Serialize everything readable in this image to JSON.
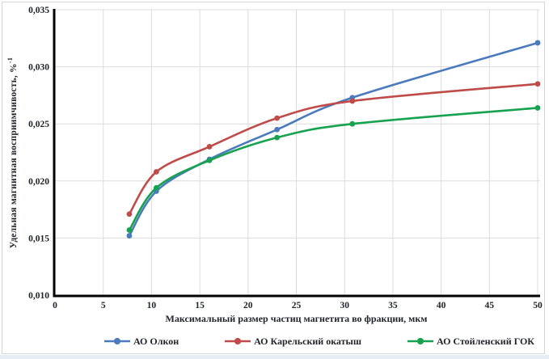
{
  "frame": {
    "border_color": "#d6d6d6",
    "bottom_strip_color": "#e7edf4",
    "background": "#ffffff"
  },
  "chart_data": {
    "type": "line",
    "line_style": "smooth",
    "marker": "circle",
    "x": [
      7.7,
      10.5,
      16,
      23,
      30.8,
      50
    ],
    "series": [
      {
        "name": "АО Олкон",
        "color": "#4b7bbd",
        "values": [
          0.0152,
          0.0191,
          0.0219,
          0.0245,
          0.0273,
          0.0321
        ]
      },
      {
        "name": "АО Карельский окатыш",
        "color": "#bf4c49",
        "values": [
          0.0171,
          0.0208,
          0.023,
          0.0255,
          0.027,
          0.0285
        ]
      },
      {
        "name": "АО Стойленский ГОК",
        "color": "#17a24f",
        "values": [
          0.0157,
          0.0194,
          0.0218,
          0.0238,
          0.025,
          0.0264
        ]
      }
    ],
    "xlabel": "Максимальный размер частиц магнетита во фракции, мкм",
    "ylabel": "Удельная магнитная восприимчивость, %",
    "ylabel_superscript": "-1",
    "xlim": [
      0,
      50
    ],
    "ylim": [
      0.01,
      0.035
    ],
    "x_ticks": {
      "values": [
        0,
        5,
        10,
        15,
        20,
        25,
        30,
        35,
        40,
        45,
        50
      ],
      "labels": [
        "0",
        "5",
        "10",
        "15",
        "20",
        "25",
        "30",
        "35",
        "40",
        "45",
        "50"
      ]
    },
    "y_ticks": {
      "values": [
        0.01,
        0.015,
        0.02,
        0.025,
        0.03,
        0.035
      ],
      "labels": [
        "0,010",
        "0,015",
        "0,020",
        "0,025",
        "0,030",
        "0,035"
      ]
    },
    "grid": true,
    "legend_position": "bottom",
    "colors": {
      "grid": "#dcdcdc",
      "axis": "#000000",
      "tick_text": "#21252b"
    }
  }
}
